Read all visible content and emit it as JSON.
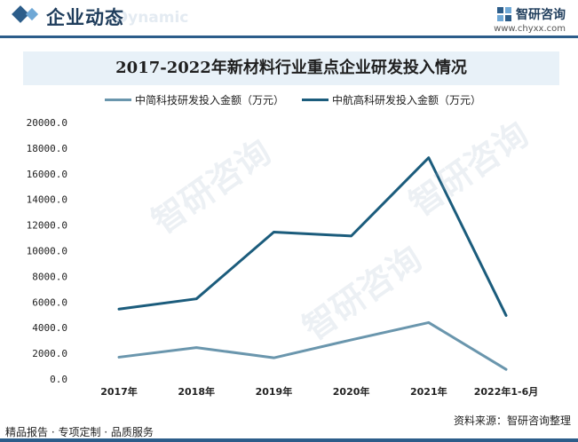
{
  "header": {
    "title": "企业动态",
    "ghost_text": "Dynamic",
    "brand_name": "智研咨询",
    "brand_url": "www.chyxx.com"
  },
  "footer": {
    "left": "精品报告 · 专项定制 · 品质服务",
    "source": "资料来源：智研咨询整理"
  },
  "watermark_text": "智研咨询",
  "colors": {
    "series_1": "#6a96ad",
    "series_2": "#1b5c7c",
    "accent": "#2c5d8a",
    "title_band": "#e8f1f8"
  },
  "chart_data": {
    "type": "line",
    "title": "2017-2022年新材料行业重点企业研发投入情况",
    "categories": [
      "2017年",
      "2018年",
      "2019年",
      "2020年",
      "2021年",
      "2022年1-6月"
    ],
    "series": [
      {
        "name": "中简科技研发投入金额（万元）",
        "values": [
          1700,
          2450,
          1650,
          3050,
          4400,
          750
        ]
      },
      {
        "name": "中航高科研发投入金额（万元）",
        "values": [
          5450,
          6250,
          11450,
          11150,
          17250,
          4950
        ]
      }
    ],
    "ylim": [
      0,
      20000
    ],
    "yticks": [
      "0.0",
      "2000.0",
      "4000.0",
      "6000.0",
      "8000.0",
      "10000.0",
      "12000.0",
      "14000.0",
      "16000.0",
      "18000.0",
      "20000.0"
    ],
    "legend_position": "top",
    "grid": false
  }
}
